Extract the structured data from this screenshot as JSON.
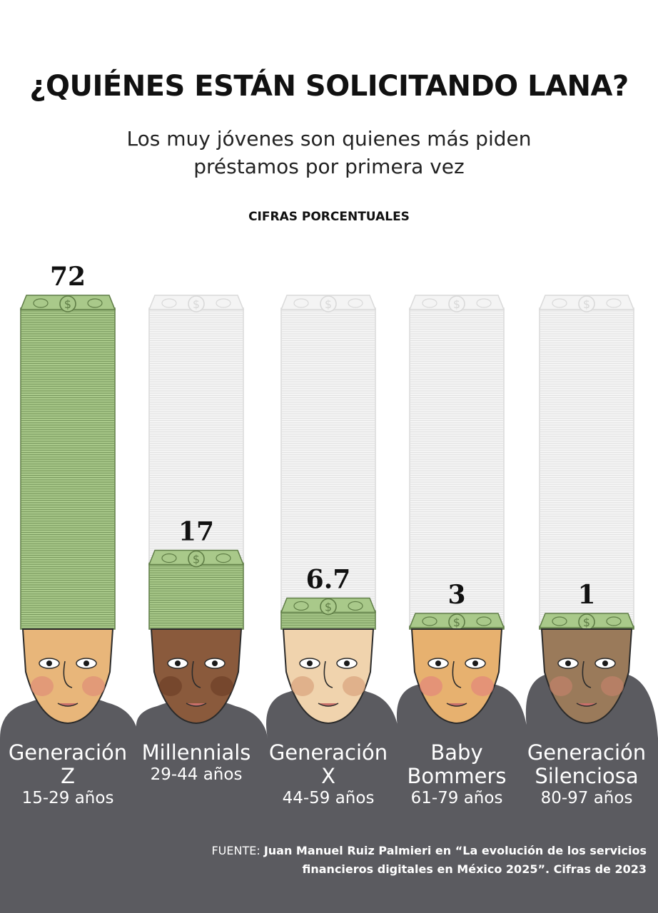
{
  "header": {
    "title": "¿QUIÉNES ESTÁN SOLICITANDO LANA?",
    "subtitle": "Los muy jóvenes son quienes más piden préstamos por primera vez",
    "units": "CIFRAS PORCENTUALES"
  },
  "chart_data": {
    "type": "bar",
    "title": "¿QUIÉNES ESTÁN SOLICITANDO LANA?",
    "subtitle": "Los muy jóvenes son quienes más piden préstamos por primera vez",
    "ylabel": "CIFRAS PORCENTUALES",
    "ylim": [
      0,
      72
    ],
    "categories": [
      "Generación Z",
      "Millennials",
      "Generación X",
      "Baby Bommers",
      "Generación Silenciosa"
    ],
    "age_ranges": [
      "15-29 años",
      "29-44 años",
      "44-59 años",
      "61-79 años",
      "80-97 años"
    ],
    "values": [
      72,
      17,
      6.7,
      3,
      1
    ],
    "value_labels": [
      "72",
      "17",
      "6.7",
      "3",
      "1"
    ],
    "grid": false,
    "legend": "none",
    "colors": {
      "money": "#a9c98a",
      "money_dark": "#5f7d46",
      "ghost": "#d9d9d9",
      "ground": "#5b5b60"
    }
  },
  "categories_display": [
    {
      "name_lines": [
        "Generación",
        "Z"
      ],
      "age": "15-29 años"
    },
    {
      "name_lines": [
        "Millennials"
      ],
      "age": "29-44 años"
    },
    {
      "name_lines": [
        "Generación",
        "X"
      ],
      "age": "44-59 años"
    },
    {
      "name_lines": [
        "Baby",
        "Bommers"
      ],
      "age": "61-79 años"
    },
    {
      "name_lines": [
        "Generación",
        "Silenciosa"
      ],
      "age": "80-97 años"
    }
  ],
  "currency_symbol": "$",
  "source": {
    "label": "FUENTE:",
    "text": "Juan Manuel Ruiz Palmieri en “La evolución de los servicios financieros digitales en México 2025”. Cifras de 2023"
  }
}
